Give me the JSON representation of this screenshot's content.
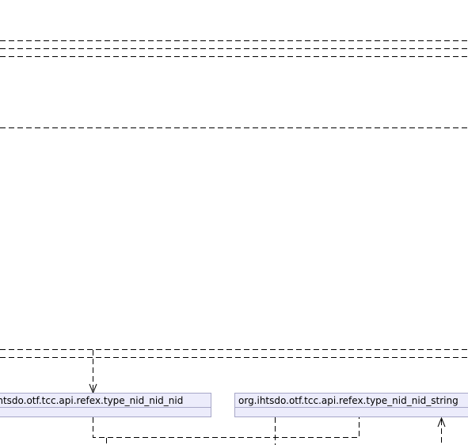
{
  "packages": [
    {
      "id": "box1",
      "label": "ihtsdo.otf.tcc.api.refex.type_nid_nid_nid"
    },
    {
      "id": "box2",
      "label": "org.ihtsdo.otf.tcc.api.refex.type_nid_nid_string"
    }
  ],
  "colors": {
    "box_fill": "#ececfb",
    "box_border": "#a7a7c8",
    "line": "#000000",
    "background": "#ffffff"
  }
}
